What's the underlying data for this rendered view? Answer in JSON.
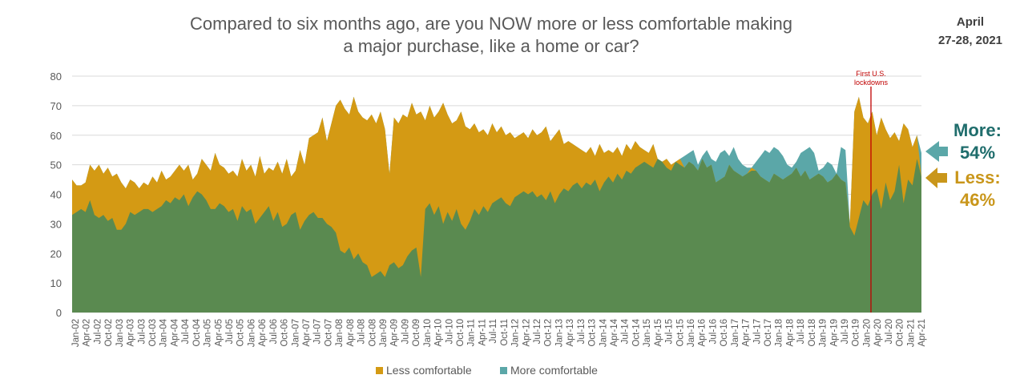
{
  "header": {
    "title_line1": "Compared to six months ago, are you NOW more or less comfortable making",
    "title_line2": "a major purchase, like a home or car?",
    "date_line1": "April",
    "date_line2": "27-28, 2021"
  },
  "colors": {
    "less": "#d49a14",
    "more": "#5ba7a8",
    "base": "#5a8a50",
    "gridline": "#d9d9d9",
    "annotation": "#c00000",
    "more_label": "#1f6d6c",
    "less_label": "#c9961a"
  },
  "callouts": {
    "more_label": "More:",
    "more_value": "54%",
    "less_label": "Less:",
    "less_value": "46%",
    "lockdown_line1": "First U.S.",
    "lockdown_line2": "lockdowns"
  },
  "chart_data": {
    "type": "area",
    "title": "Compared to six months ago, are you NOW more or less comfortable making a major purchase, like a home or car?",
    "ylim": [
      0,
      80
    ],
    "y_ticks": [
      0,
      10,
      20,
      30,
      40,
      50,
      60,
      70,
      80
    ],
    "grid": true,
    "legend_position": "bottom",
    "x_tick_labels": [
      "Jan-02",
      "Apr-02",
      "Jul-02",
      "Oct-02",
      "Jan-03",
      "Apr-03",
      "Jul-03",
      "Oct-03",
      "Jan-04",
      "Apr-04",
      "Jul-04",
      "Oct-04",
      "Jan-05",
      "Apr-05",
      "Jul-05",
      "Oct-05",
      "Jan-06",
      "Apr-06",
      "Jul-06",
      "Oct-06",
      "Jan-07",
      "Apr-07",
      "Jul-07",
      "Oct-07",
      "Jan-08",
      "Apr-08",
      "Jul-08",
      "Oct-08",
      "Jan-09",
      "Apr-09",
      "Jul-09",
      "Oct-09",
      "Jan-10",
      "Apr-10",
      "Jul-10",
      "Oct-10",
      "Jan-11",
      "Apr-11",
      "Jul-11",
      "Oct-11",
      "Jan-12",
      "Apr-12",
      "Jul-12",
      "Oct-12",
      "Jan-13",
      "Apr-13",
      "Jul-13",
      "Oct-13",
      "Jan-14",
      "Apr-14",
      "Jul-14",
      "Oct-14",
      "Jan-15",
      "Apr-15",
      "Jul-15",
      "Oct-15",
      "Jan-16",
      "Apr-16",
      "Jul-16",
      "Oct-16",
      "Jan-17",
      "Apr-17",
      "Jul-17",
      "Oct-17",
      "Jan-18",
      "Apr-18",
      "Jul-18",
      "Oct-18",
      "Jan-19",
      "Apr-19",
      "Jul-19",
      "Oct-19",
      "Jan-20",
      "Apr-20",
      "Jul-20",
      "Oct-20",
      "Jan-21",
      "Apr-21"
    ],
    "annotation": {
      "label": "First U.S. lockdowns",
      "x": "Mar-20"
    },
    "series": [
      {
        "name": "Less comfortable",
        "values": [
          45,
          43,
          43,
          44,
          50,
          48,
          50,
          47,
          49,
          46,
          47,
          44,
          42,
          45,
          44,
          42,
          44,
          43,
          46,
          44,
          48,
          45,
          46,
          48,
          50,
          48,
          50,
          45,
          47,
          52,
          50,
          48,
          54,
          50,
          49,
          47,
          48,
          46,
          52,
          48,
          50,
          46,
          53,
          47,
          49,
          48,
          51,
          47,
          52,
          46,
          48,
          55,
          50,
          59,
          60,
          61,
          66,
          58,
          64,
          70,
          72,
          69,
          67,
          73,
          68,
          66,
          65,
          67,
          64,
          68,
          62,
          47,
          66,
          64,
          67,
          66,
          71,
          67,
          68,
          65,
          70,
          66,
          68,
          71,
          67,
          64,
          65,
          68,
          63,
          62,
          64,
          61,
          62,
          60,
          64,
          61,
          63,
          60,
          61,
          59,
          60,
          61,
          59,
          62,
          60,
          61,
          63,
          58,
          60,
          62,
          57,
          58,
          57,
          56,
          55,
          54,
          56,
          53,
          57,
          54,
          55,
          54,
          56,
          53,
          57,
          55,
          58,
          56,
          55,
          54,
          57,
          52,
          51,
          52,
          50,
          51,
          52,
          49,
          51,
          50,
          48,
          52,
          49,
          50,
          44,
          45,
          46,
          50,
          48,
          47,
          46,
          47,
          49,
          48,
          46,
          45,
          44,
          47,
          46,
          45,
          46,
          47,
          49,
          46,
          48,
          45,
          46,
          47,
          46,
          44,
          45,
          47,
          45,
          44,
          30,
          68,
          73,
          66,
          64,
          68,
          60,
          66,
          62,
          59,
          61,
          58,
          64,
          62,
          56,
          60,
          46
        ],
        "x_start": "Jan-02",
        "step_months": 0.5
      },
      {
        "name": "More comfortable",
        "values": [
          33,
          34,
          35,
          34,
          38,
          33,
          32,
          33,
          31,
          32,
          28,
          28,
          30,
          34,
          33,
          34,
          35,
          35,
          34,
          35,
          36,
          38,
          37,
          39,
          38,
          40,
          36,
          39,
          41,
          40,
          38,
          35,
          35,
          37,
          36,
          34,
          35,
          31,
          36,
          34,
          35,
          30,
          32,
          34,
          36,
          31,
          34,
          29,
          30,
          33,
          34,
          28,
          31,
          33,
          34,
          32,
          32,
          30,
          29,
          27,
          21,
          20,
          22,
          18,
          20,
          17,
          16,
          12,
          13,
          14,
          12,
          16,
          17,
          15,
          16,
          19,
          21,
          22,
          12,
          35,
          37,
          33,
          36,
          30,
          34,
          31,
          35,
          30,
          28,
          31,
          35,
          33,
          36,
          34,
          37,
          38,
          39,
          37,
          36,
          39,
          40,
          41,
          40,
          41,
          39,
          40,
          38,
          41,
          37,
          40,
          42,
          41,
          43,
          44,
          42,
          44,
          43,
          45,
          41,
          44,
          46,
          44,
          47,
          45,
          48,
          47,
          49,
          50,
          51,
          50,
          49,
          52,
          51,
          49,
          48,
          51,
          50,
          53,
          54,
          55,
          50,
          53,
          55,
          52,
          51,
          54,
          55,
          53,
          56,
          52,
          50,
          49,
          48,
          51,
          53,
          55,
          54,
          56,
          55,
          53,
          50,
          49,
          51,
          54,
          55,
          56,
          54,
          48,
          49,
          51,
          50,
          47,
          56,
          55,
          29,
          26,
          32,
          38,
          36,
          40,
          42,
          35,
          44,
          38,
          41,
          50,
          37,
          45,
          43,
          52,
          54
        ],
        "x_start": "Jan-02",
        "step_months": 0.5
      }
    ]
  },
  "legend": {
    "items": [
      {
        "label": "Less comfortable",
        "color": "#d49a14"
      },
      {
        "label": "More comfortable",
        "color": "#5ba7a8"
      }
    ]
  }
}
